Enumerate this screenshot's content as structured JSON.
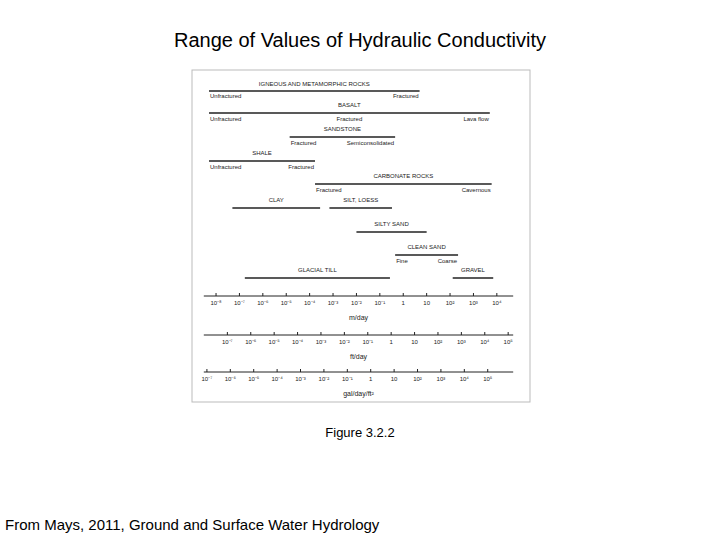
{
  "chart_data": {
    "type": "range",
    "orientation": "horizontal",
    "log": "x",
    "title": "Range of Values of Hydraulic Conductivity",
    "caption": "Figure 3.2.2",
    "source": "From Mays, 2011, Ground and Surface Water Hydrology",
    "categories": [
      "IGNEOUS AND METAMORPHIC ROCKS",
      "BASALT",
      "SANDSTONE",
      "SHALE",
      "CARBONATE ROCKS",
      "CLAY",
      "SILT, LOESS",
      "SILTY SAND",
      "CLEAN SAND",
      "GLACIAL TILL",
      "GRAVEL"
    ],
    "low": [
      5e-09,
      5e-09,
      1.4e-05,
      5e-09,
      0.00017,
      5e-08,
      0.0007,
      0.01,
      0.45,
      1.7e-07,
      130
    ],
    "high": [
      5,
      5000,
      0.45,
      0.00017,
      6000,
      0.00028,
      0.33,
      10,
      220,
      0.27,
      7000
    ],
    "sublabels": [
      [
        "Unfractured",
        "Fractured"
      ],
      [
        "Unfractured",
        "Fractured",
        "Lava flow"
      ],
      [
        "Fractured",
        "Semiconsolidated"
      ],
      [
        "Unfractured",
        "Fractured"
      ],
      [
        "Fractured",
        "Cavernous"
      ],
      [],
      [],
      [],
      [
        "Fine",
        "Coarse"
      ],
      [],
      []
    ],
    "xlabel": "m/day",
    "xlim": [
      3e-09,
      50000
    ],
    "xticks": [
      {
        "value": 1e-08,
        "label": "10⁻⁸"
      },
      {
        "value": 1e-07,
        "label": "10⁻⁷"
      },
      {
        "value": 1e-06,
        "label": "10⁻⁶"
      },
      {
        "value": 1e-05,
        "label": "10⁻⁵"
      },
      {
        "value": 0.0001,
        "label": "10⁻⁴"
      },
      {
        "value": 0.001,
        "label": "10⁻³"
      },
      {
        "value": 0.01,
        "label": "10⁻²"
      },
      {
        "value": 0.1,
        "label": "10⁻¹"
      },
      1,
      10,
      {
        "value": 100,
        "label": "10²"
      },
      {
        "value": 1000,
        "label": "10³"
      },
      {
        "value": 10000,
        "label": "10⁴"
      }
    ],
    "secondary_axes": [
      {
        "label": "ft/day",
        "ticks": [
          {
            "value": 3.048e-08,
            "label": "10⁻⁷"
          },
          {
            "value": 3.048e-07,
            "label": "10⁻⁶"
          },
          {
            "value": 3.048e-06,
            "label": "10⁻⁵"
          },
          {
            "value": 3.048e-05,
            "label": "10⁻⁴"
          },
          {
            "value": 0.0003048,
            "label": "10⁻³"
          },
          {
            "value": 0.003048,
            "label": "10⁻²"
          },
          {
            "value": 0.03048,
            "label": "10⁻¹"
          },
          {
            "value": 0.3048,
            "label": "1"
          },
          {
            "value": 3.048,
            "label": "10"
          },
          {
            "value": 30.48,
            "label": "10²"
          },
          {
            "value": 304.8,
            "label": "10³"
          },
          {
            "value": 3048,
            "label": "10⁴"
          },
          {
            "value": 30480,
            "label": "10⁵"
          }
        ]
      },
      {
        "label": "gal/day/ft²",
        "ticks": [
          {
            "value": 4.0746e-09,
            "label": "10⁻⁷"
          },
          {
            "value": 4.0746e-08,
            "label": "10⁻⁶"
          },
          {
            "value": 4.0746e-07,
            "label": "10⁻⁵"
          },
          {
            "value": 4.0746e-06,
            "label": "10⁻⁴"
          },
          {
            "value": 4.0746e-05,
            "label": "10⁻³"
          },
          {
            "value": 0.00040746,
            "label": "10⁻²"
          },
          {
            "value": 0.0040746,
            "label": "10⁻¹"
          },
          {
            "value": 0.040746,
            "label": "1"
          },
          {
            "value": 0.40746,
            "label": "10"
          },
          {
            "value": 4.0746,
            "label": "10²"
          },
          {
            "value": 40.746,
            "label": "10³"
          },
          {
            "value": 407.46,
            "label": "10⁴"
          },
          {
            "value": 4074.6,
            "label": "10⁵"
          }
        ]
      }
    ]
  }
}
